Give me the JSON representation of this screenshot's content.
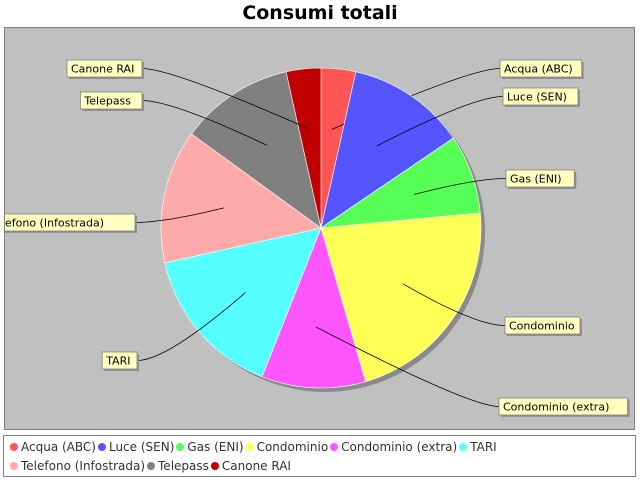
{
  "chart_data": {
    "type": "pie",
    "title": "Consumi totali",
    "series": [
      {
        "name": "Acqua (ABC)",
        "value": 3.5,
        "color": "#ff5555"
      },
      {
        "name": "Luce (SEN)",
        "value": 12.0,
        "color": "#5555ff"
      },
      {
        "name": "Gas (ENI)",
        "value": 8.0,
        "color": "#55ff55"
      },
      {
        "name": "Condominio",
        "value": 22.0,
        "color": "#ffff55"
      },
      {
        "name": "Condominio (extra)",
        "value": 10.5,
        "color": "#ff55ff"
      },
      {
        "name": "TARI",
        "value": 15.5,
        "color": "#55ffff"
      },
      {
        "name": "Telefono (Infostrada)",
        "value": 13.5,
        "color": "#ffaaaa"
      },
      {
        "name": "Telepass",
        "value": 11.5,
        "color": "#808080"
      },
      {
        "name": "Canone RAI",
        "value": 3.5,
        "color": "#c00000"
      }
    ],
    "legend_position": "bottom"
  }
}
